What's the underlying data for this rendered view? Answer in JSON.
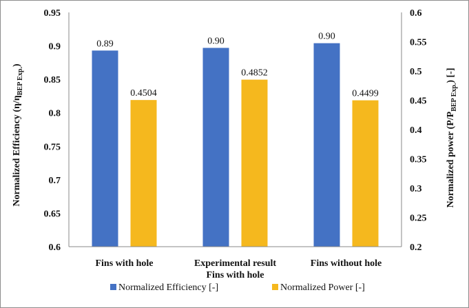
{
  "chart_data": {
    "type": "bar",
    "categories": [
      [
        "Fins with hole"
      ],
      [
        "Experimental result",
        "Fins with hole"
      ],
      [
        "Fins without hole"
      ]
    ],
    "series": [
      {
        "name": "Normalized Efficiency [-]",
        "axis": "left",
        "color": "#4472c4",
        "values": [
          0.893,
          0.897,
          0.904
        ],
        "labels": [
          "0.89",
          "0.90",
          "0.90"
        ]
      },
      {
        "name": "Normalized Power [-]",
        "axis": "right",
        "color": "#f5b81e",
        "values": [
          0.4504,
          0.4852,
          0.4499
        ],
        "labels": [
          "0.4504",
          "0.4852",
          "0.4499"
        ]
      }
    ],
    "y_left": {
      "label_main": "Normalized Efficiency (η/η",
      "label_sub": "BEP Exp.",
      "label_end": ")",
      "lim": [
        0.6,
        0.95
      ],
      "ticks": [
        "0.6",
        "0.65",
        "0.7",
        "0.75",
        "0.8",
        "0.85",
        "0.9",
        "0.95"
      ]
    },
    "y_right": {
      "label_main": "Normalized power (P/P",
      "label_sub": "BEP Exp.",
      "label_end": ") [-]",
      "lim": [
        0.2,
        0.6
      ],
      "ticks": [
        "0.2",
        "0.25",
        "0.3",
        "0.35",
        "0.4",
        "0.45",
        "0.5",
        "0.55",
        "0.6"
      ]
    },
    "legend_position": "bottom",
    "grid": false
  }
}
